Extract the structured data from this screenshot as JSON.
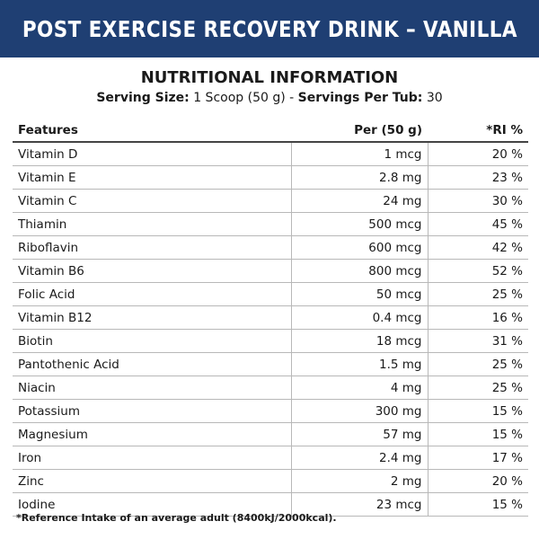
{
  "banner": {
    "title": "POST EXERCISE RECOVERY DRINK – VANILLA"
  },
  "heading": "NUTRITIONAL INFORMATION",
  "serving": {
    "size_label": "Serving Size:",
    "size_value": " 1 Scoop (50 g) - ",
    "servings_label": "Servings Per Tub:",
    "servings_value": " 30"
  },
  "table": {
    "headers": [
      "Features",
      "Per (50 g)",
      "*RI %"
    ],
    "rows": [
      {
        "feature": "Vitamin D",
        "per": "1 mcg",
        "ri": "20 %"
      },
      {
        "feature": "Vitamin E",
        "per": "2.8 mg",
        "ri": "23 %"
      },
      {
        "feature": "Vitamin C",
        "per": "24 mg",
        "ri": "30 %"
      },
      {
        "feature": "Thiamin",
        "per": "500 mcg",
        "ri": "45 %"
      },
      {
        "feature": "Riboflavin",
        "per": "600 mcg",
        "ri": "42 %"
      },
      {
        "feature": "Vitamin B6",
        "per": "800 mcg",
        "ri": "52 %"
      },
      {
        "feature": "Folic Acid",
        "per": "50 mcg",
        "ri": "25 %"
      },
      {
        "feature": "Vitamin B12",
        "per": "0.4 mcg",
        "ri": "16 %"
      },
      {
        "feature": "Biotin",
        "per": "18 mcg",
        "ri": "31 %"
      },
      {
        "feature": "Pantothenic Acid",
        "per": "1.5 mg",
        "ri": "25 %"
      },
      {
        "feature": "Niacin",
        "per": "4 mg",
        "ri": "25 %"
      },
      {
        "feature": "Potassium",
        "per": "300 mg",
        "ri": "15 %"
      },
      {
        "feature": "Magnesium",
        "per": "57 mg",
        "ri": "15 %"
      },
      {
        "feature": "Iron",
        "per": "2.4 mg",
        "ri": "17 %"
      },
      {
        "feature": "Zinc",
        "per": "2 mg",
        "ri": "20 %"
      },
      {
        "feature": "Iodine",
        "per": "23 mcg",
        "ri": "15 %"
      }
    ]
  },
  "footnote": "*Reference Intake of an average adult (8400kJ/2000kcal).",
  "colors": {
    "banner": "#1f3f73",
    "banner_text": "#ffffff"
  }
}
